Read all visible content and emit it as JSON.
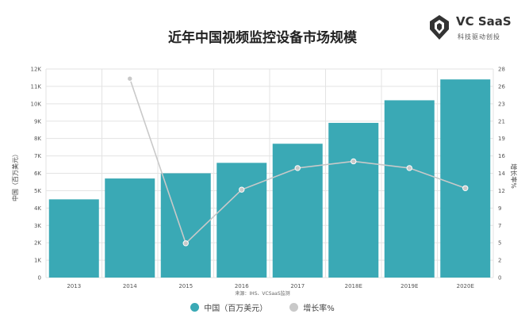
{
  "header": {
    "title": "近年中国视频监控设备市场规模"
  },
  "logo": {
    "name": "VC SaaS",
    "tagline": "科技驱动创投"
  },
  "source": "来源：IHS、VCSaaS监测",
  "colors": {
    "bar": "#3aa9b5",
    "line": "#c9c9c9",
    "grid": "#e3e3e3"
  },
  "chart_data": {
    "type": "bar",
    "title": "近年中国视频监控设备市场规模",
    "categories": [
      "2013",
      "2014",
      "2015",
      "2016",
      "2017",
      "2018E",
      "2019E",
      "2020E"
    ],
    "series": [
      {
        "name": "中国（百万美元）",
        "type": "bar",
        "axis": "left",
        "values": [
          4500,
          5700,
          6000,
          6600,
          7700,
          8900,
          10200,
          11400
        ]
      },
      {
        "name": "增长率%",
        "type": "line",
        "axis": "right",
        "values": [
          null,
          26.7,
          4.6,
          11.8,
          14.7,
          15.6,
          14.7,
          12.0
        ]
      }
    ],
    "ylabel": "中国（百万美元）",
    "y2label": "增长率%",
    "ylim": [
      0,
      12000
    ],
    "y2lim": [
      0,
      28
    ],
    "yticks": [
      "0",
      "1K",
      "2K",
      "3K",
      "4K",
      "5K",
      "6K",
      "7K",
      "8K",
      "9K",
      "10K",
      "11K",
      "12K"
    ],
    "y2ticks": [
      "0",
      "2",
      "5",
      "7",
      "9",
      "12",
      "14",
      "16",
      "19",
      "21",
      "23",
      "26",
      "28"
    ],
    "grid": true,
    "legend": "bottom"
  }
}
